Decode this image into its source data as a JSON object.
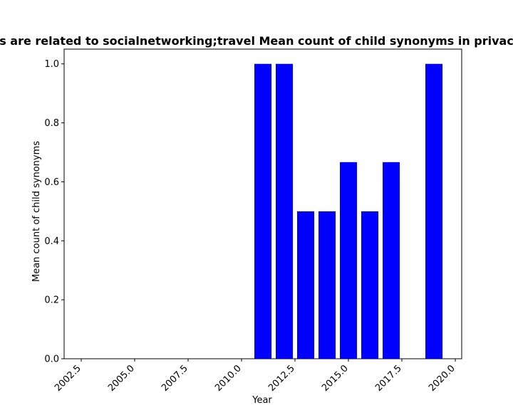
{
  "chart_data": {
    "type": "bar",
    "title": "s are related to socialnetworking;travel Mean count of child synonyms in privac",
    "xlabel": "Year",
    "ylabel": "Mean count of child synonyms",
    "x": [
      2011,
      2012,
      2013,
      2014,
      2015,
      2016,
      2017,
      2019
    ],
    "values": [
      1.0,
      1.0,
      0.5,
      0.5,
      0.6667,
      0.5,
      0.6667,
      1.0
    ],
    "xlim": [
      2001.7,
      2020.3
    ],
    "ylim": [
      0,
      1.05
    ],
    "xticks": [
      "2002.5",
      "2005.0",
      "2007.5",
      "2010.0",
      "2012.5",
      "2015.0",
      "2017.5",
      "2020.0"
    ],
    "xtick_values": [
      2002.5,
      2005.0,
      2007.5,
      2010.0,
      2012.5,
      2015.0,
      2017.5,
      2020.0
    ],
    "yticks": [
      "0.0",
      "0.2",
      "0.4",
      "0.6",
      "0.8",
      "1.0"
    ],
    "ytick_values": [
      0,
      0.2,
      0.4,
      0.6,
      0.8,
      1.0
    ],
    "bar_color": "#0000ff",
    "grid": false,
    "legend": "none"
  }
}
